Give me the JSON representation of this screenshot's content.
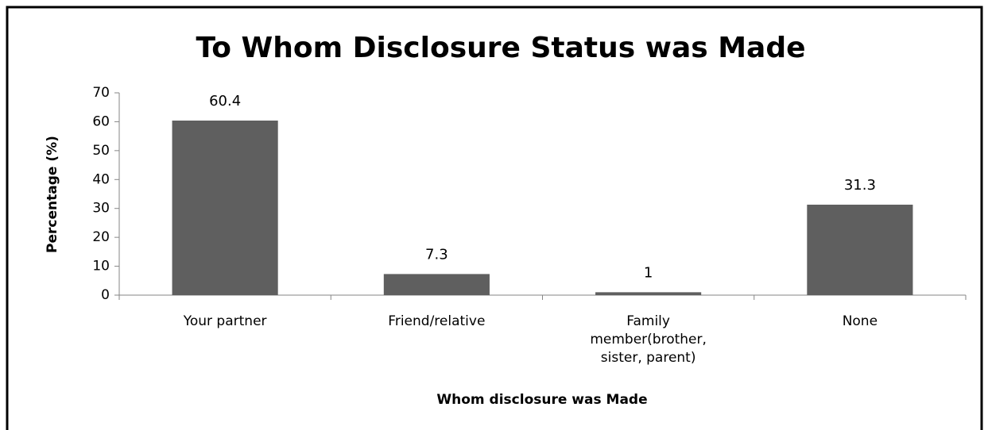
{
  "chart_data": {
    "type": "bar",
    "title": "To Whom Disclosure Status was Made",
    "categories": [
      "Your partner",
      "Friend/relative",
      "Family member(brother, sister, parent)",
      "None"
    ],
    "values": [
      60.4,
      7.3,
      1,
      31.3
    ],
    "color": "#5f5f5f",
    "ylim": [
      0,
      70
    ],
    "yticks": [
      0,
      10,
      20,
      30,
      40,
      50,
      60,
      70
    ],
    "xlabel": "Whom disclosure was Made",
    "ylabel": "Percentage (%)",
    "grid": false
  }
}
